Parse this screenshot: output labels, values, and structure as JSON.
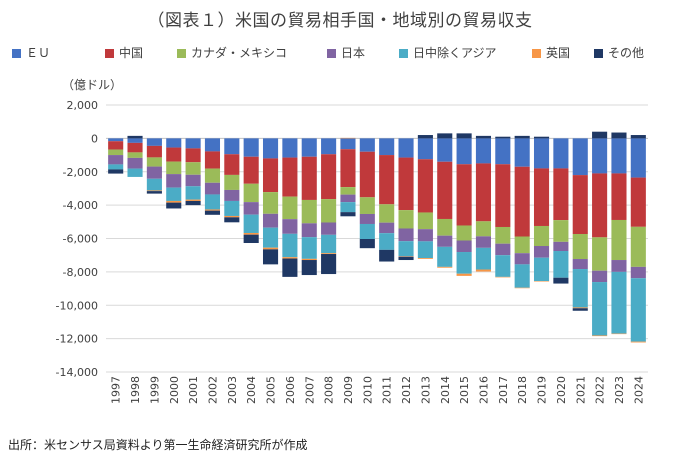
{
  "title": "（図表１）米国の貿易相手国・地域別の貿易収支",
  "y_unit_label": "（億ドル）",
  "source_note": "出所：米センサス局資料より第一生命経済研究所が作成",
  "legend": [
    {
      "label": "ＥＵ",
      "color": "#4472c4"
    },
    {
      "label": "中国",
      "color": "#c0393b"
    },
    {
      "label": "カナダ・メキシコ",
      "color": "#9bbb59"
    },
    {
      "label": "日本",
      "color": "#8064a2"
    },
    {
      "label": "日中除くアジア",
      "color": "#4bacc6"
    },
    {
      "label": "英国",
      "color": "#f79646"
    },
    {
      "label": "その他",
      "color": "#1f3864"
    }
  ],
  "chart_data": {
    "type": "bar",
    "stacked": true,
    "categories": [
      "1997",
      "1998",
      "1999",
      "2000",
      "2001",
      "2002",
      "2003",
      "2004",
      "2005",
      "2006",
      "2007",
      "2008",
      "2009",
      "2010",
      "2011",
      "2012",
      "2013",
      "2014",
      "2015",
      "2016",
      "2017",
      "2018",
      "2019",
      "2020",
      "2021",
      "2022",
      "2023",
      "2024"
    ],
    "ylim": [
      -14000,
      2000
    ],
    "yticks": [
      2000,
      0,
      -2000,
      -4000,
      -6000,
      -8000,
      -10000,
      -12000,
      -14000
    ],
    "ytick_labels": [
      "2,000",
      "0",
      "-2,000",
      "-4,000",
      "-6,000",
      "-8,000",
      "-10,000",
      "-12,000",
      "-14,000"
    ],
    "grid": true,
    "legend_position": "top",
    "series": [
      {
        "name": "ＥＵ",
        "values": [
          -170,
          -270,
          -450,
          -550,
          -600,
          -780,
          -950,
          -1100,
          -1200,
          -1150,
          -1100,
          -950,
          -650,
          -800,
          -1000,
          -1150,
          -1250,
          -1400,
          -1550,
          -1500,
          -1550,
          -1700,
          -1800,
          -1800,
          -2200,
          -2100,
          -2100,
          -2350
        ]
      },
      {
        "name": "中国",
        "values": [
          -500,
          -570,
          -690,
          -840,
          -830,
          -1030,
          -1240,
          -1620,
          -2020,
          -2340,
          -2590,
          -2690,
          -2270,
          -2730,
          -2950,
          -3150,
          -3190,
          -3430,
          -3670,
          -3470,
          -3760,
          -4180,
          -3450,
          -3100,
          -3530,
          -3830,
          -2790,
          -2950
        ]
      },
      {
        "name": "カナダ・メキシコ",
        "values": [
          -330,
          -330,
          -550,
          -750,
          -750,
          -850,
          -900,
          -1100,
          -1300,
          -1350,
          -1400,
          -1400,
          -450,
          -1000,
          -1100,
          -1100,
          -1000,
          -1000,
          -900,
          -900,
          -1000,
          -1000,
          -1200,
          -1300,
          -1500,
          -2000,
          -2400,
          -2400
        ]
      },
      {
        "name": "日本",
        "values": [
          -560,
          -640,
          -730,
          -810,
          -690,
          -700,
          -660,
          -750,
          -830,
          -880,
          -830,
          -740,
          -450,
          -600,
          -630,
          -760,
          -730,
          -670,
          -690,
          -690,
          -690,
          -670,
          -700,
          -550,
          -600,
          -680,
          -710,
          -680
        ]
      },
      {
        "name": "日中除くアジア",
        "values": [
          -300,
          -500,
          -700,
          -800,
          -800,
          -900,
          -900,
          -1100,
          -1200,
          -1400,
          -1300,
          -1100,
          -600,
          -900,
          -1000,
          -900,
          -1000,
          -1200,
          -1300,
          -1300,
          -1300,
          -1400,
          -1400,
          -1600,
          -2300,
          -3200,
          -3700,
          -3800
        ]
      },
      {
        "name": "英国",
        "values": [
          0,
          0,
          -40,
          -100,
          -80,
          -70,
          -80,
          -100,
          -100,
          -80,
          -70,
          -50,
          30,
          0,
          0,
          -30,
          -50,
          -50,
          -130,
          -120,
          -30,
          -30,
          -10,
          0,
          -50,
          -40,
          -20,
          -50
        ]
      },
      {
        "name": "その他",
        "values": [
          -250,
          150,
          -150,
          -350,
          -250,
          -250,
          -300,
          -500,
          -900,
          -1100,
          -900,
          -1200,
          -250,
          -550,
          -700,
          -200,
          200,
          300,
          300,
          150,
          100,
          150,
          100,
          -350,
          -150,
          400,
          350,
          200
        ]
      }
    ]
  }
}
